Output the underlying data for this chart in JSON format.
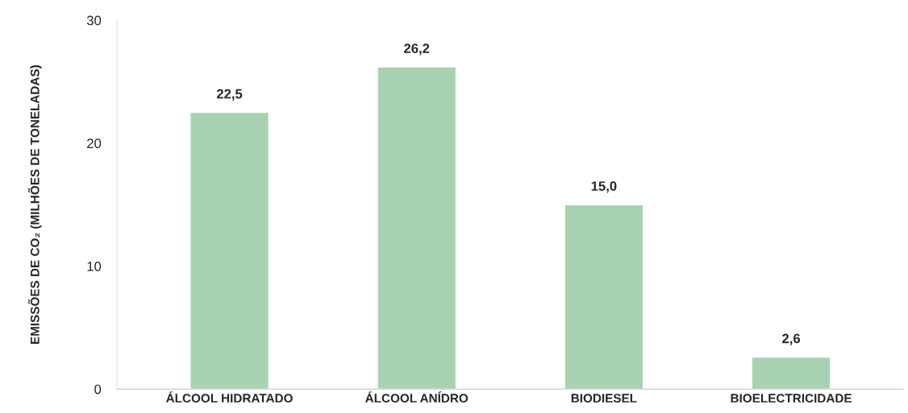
{
  "chart_data": {
    "type": "bar",
    "ylabel": "EMISSÕES DE CO₂ (MILHÕES DE TONELADAS)",
    "categories": [
      "ÁLCOOL HIDRATADO",
      "ÁLCOOL ANÍDRO",
      "BIODIESEL",
      "BIOELECTRICIDADE"
    ],
    "values": [
      22.5,
      26.2,
      15.0,
      2.6
    ],
    "value_labels": [
      "22,5",
      "26,2",
      "15,0",
      "2,6"
    ],
    "color": "#a8d1b1",
    "ylim": [
      0,
      30
    ],
    "yticks": [
      0,
      10,
      20,
      30
    ],
    "grid": false
  }
}
